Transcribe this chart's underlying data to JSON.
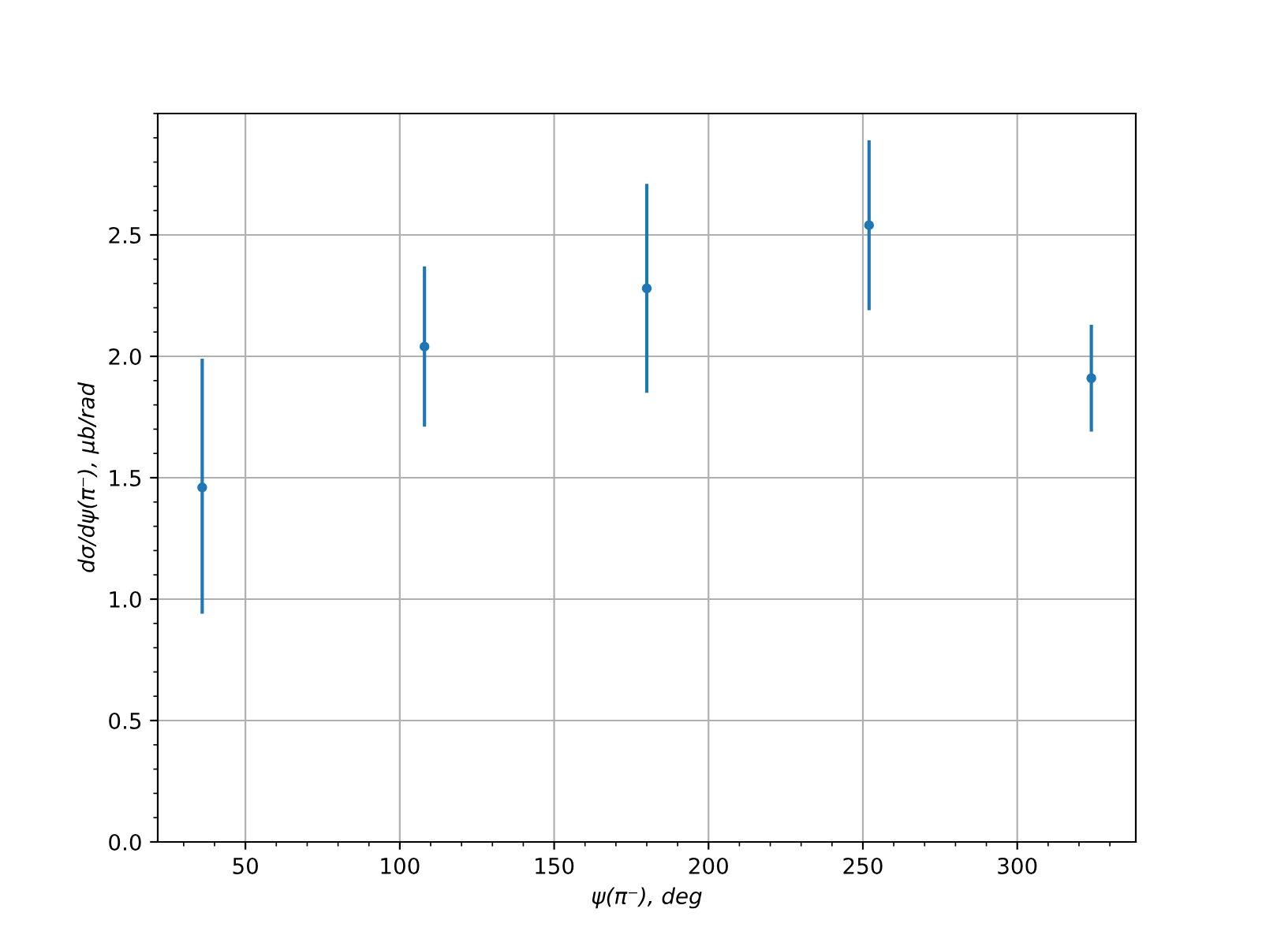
{
  "chart_data": {
    "type": "scatter",
    "xlabel": "ψ(π⁻), deg",
    "ylabel": "dσ/dψ(π⁻), μb/rad",
    "x": [
      36,
      108,
      180,
      252,
      324
    ],
    "series": [
      {
        "color": "#1f77b4",
        "values": [
          1.46,
          2.04,
          2.28,
          2.54,
          1.91
        ],
        "errors": [
          [
            0.94,
            1.99
          ],
          [
            1.71,
            2.37
          ],
          [
            1.85,
            2.71
          ],
          [
            2.19,
            2.89
          ],
          [
            1.69,
            2.13
          ]
        ]
      }
    ],
    "marker": "circle",
    "xlim": [
      21.6,
      338.4
    ],
    "ylim": [
      0,
      3.0
    ],
    "xticks": [
      50,
      100,
      150,
      200,
      250,
      300
    ],
    "yticks": [
      {
        "value": 0,
        "label": "0.0"
      },
      0.5,
      {
        "value": 1,
        "label": "1.0"
      },
      1.5,
      {
        "value": 2,
        "label": "2.0"
      },
      2.5
    ],
    "grid": true
  }
}
